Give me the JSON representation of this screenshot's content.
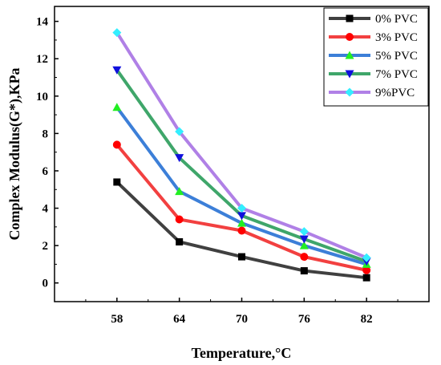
{
  "chart_data": {
    "type": "line",
    "title": "",
    "xlabel": "Temperature,°C",
    "ylabel": "Complex Modulus(G*),KPa",
    "categories": [
      "58",
      "64",
      "70",
      "76",
      "82"
    ],
    "x": [
      58,
      64,
      70,
      76,
      82
    ],
    "xlim": [
      52,
      88
    ],
    "ylim": [
      -1.0,
      14.8
    ],
    "yticks": [
      0,
      2,
      4,
      6,
      8,
      10,
      12,
      14
    ],
    "ytick_labels": [
      "0",
      "2",
      "4",
      "6",
      "8",
      "10",
      "12",
      "14"
    ],
    "grid": false,
    "legend_position": "top-right",
    "series": [
      {
        "name": "0% PVC",
        "values": [
          5.4,
          2.2,
          1.4,
          0.65,
          0.28
        ],
        "color": "#404040",
        "marker_color": "#000000",
        "marker": "square"
      },
      {
        "name": "3% PVC",
        "values": [
          7.4,
          3.4,
          2.8,
          1.4,
          0.68
        ],
        "color": "#f24040",
        "marker_color": "#ff0000",
        "marker": "circle"
      },
      {
        "name": "5% PVC",
        "values": [
          9.4,
          4.9,
          3.2,
          2.0,
          1.0
        ],
        "color": "#3c7fd8",
        "marker_color": "#22ee22",
        "marker": "triangle-up"
      },
      {
        "name": "7% PVC",
        "values": [
          11.4,
          6.7,
          3.6,
          2.35,
          1.15
        ],
        "color": "#3fa66a",
        "marker_color": "#1010dd",
        "marker": "triangle-down"
      },
      {
        "name": "9%PVC",
        "values": [
          13.4,
          8.1,
          4.0,
          2.75,
          1.35
        ],
        "color": "#b080e6",
        "marker_color": "#33eeff",
        "marker": "diamond"
      }
    ]
  }
}
